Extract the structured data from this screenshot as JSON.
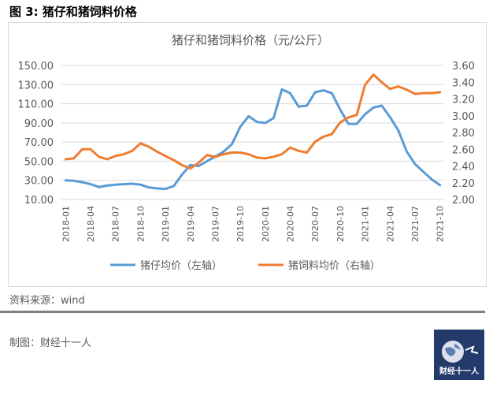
{
  "figure_title": "图 3:  猪仔和猪饲料价格",
  "source_text": "资料来源：wind",
  "credit_text": "制图：财经十一人",
  "logo_text": "财经十一人",
  "colors": {
    "blue": "#5b9bd5",
    "orange": "#ed7d31",
    "axis_text": "#595959",
    "grid": "#d9d9d9",
    "logo_bg": "#243a6b"
  },
  "chart_data": {
    "type": "line",
    "title": "猪仔和猪饲料价格（元/公斤）",
    "x": [
      "2018-01",
      "2018-02",
      "2018-03",
      "2018-04",
      "2018-05",
      "2018-06",
      "2018-07",
      "2018-08",
      "2018-09",
      "2018-10",
      "2018-11",
      "2018-12",
      "2019-01",
      "2019-02",
      "2019-03",
      "2019-04",
      "2019-05",
      "2019-06",
      "2019-07",
      "2019-08",
      "2019-09",
      "2019-10",
      "2019-11",
      "2019-12",
      "2020-01",
      "2020-02",
      "2020-03",
      "2020-04",
      "2020-05",
      "2020-06",
      "2020-07",
      "2020-08",
      "2020-09",
      "2020-10",
      "2020-11",
      "2020-12",
      "2021-01",
      "2021-02",
      "2021-03",
      "2021-04",
      "2021-05",
      "2021-06",
      "2021-07",
      "2021-08",
      "2021-09",
      "2021-10"
    ],
    "x_tick_labels": [
      "2018-01",
      "2018-04",
      "2018-07",
      "2018-10",
      "2019-01",
      "2019-04",
      "2019-07",
      "2019-10",
      "2020-01",
      "2020-04",
      "2020-07",
      "2020-10",
      "2021-01",
      "2021-04",
      "2021-07",
      "2021-10"
    ],
    "left_axis": {
      "ylim": [
        10,
        150
      ],
      "ticks": [
        "10.00",
        "30.00",
        "50.00",
        "70.00",
        "90.00",
        "110.00",
        "130.00",
        "150.00"
      ]
    },
    "right_axis": {
      "ylim": [
        2.0,
        3.6
      ],
      "ticks": [
        "2.00",
        "2.20",
        "2.40",
        "2.60",
        "2.80",
        "3.00",
        "3.20",
        "3.40",
        "3.60"
      ]
    },
    "grid": true,
    "legend_position": "bottom",
    "series": [
      {
        "name": "猪仔均价（左轴）",
        "axis": "left",
        "color": "#5b9bd5",
        "values": [
          30,
          29.5,
          28,
          26,
          23,
          24.5,
          25.5,
          26,
          26.5,
          25.5,
          22.5,
          21.5,
          21,
          24,
          36,
          46,
          45,
          50,
          55,
          60,
          68,
          86,
          97,
          91,
          90,
          95,
          125,
          121,
          107,
          108,
          122,
          124,
          121,
          104,
          89,
          89,
          99,
          106,
          108,
          96,
          82,
          60,
          47,
          39,
          31,
          25
        ]
      },
      {
        "name": "猪饲料均价（右轴）",
        "axis": "right",
        "color": "#ed7d31",
        "values": [
          2.48,
          2.49,
          2.6,
          2.6,
          2.51,
          2.48,
          2.52,
          2.54,
          2.58,
          2.67,
          2.63,
          2.57,
          2.52,
          2.47,
          2.41,
          2.37,
          2.44,
          2.53,
          2.51,
          2.54,
          2.56,
          2.56,
          2.54,
          2.5,
          2.49,
          2.51,
          2.54,
          2.62,
          2.58,
          2.56,
          2.69,
          2.75,
          2.78,
          2.92,
          2.98,
          3.01,
          3.37,
          3.49,
          3.4,
          3.32,
          3.35,
          3.31,
          3.26,
          3.27,
          3.27,
          3.28
        ]
      }
    ]
  }
}
